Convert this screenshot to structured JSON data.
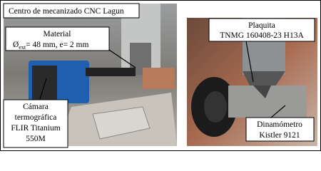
{
  "left_panel": {
    "title": "Centro de mecanizado CNC Lagun",
    "material": {
      "label": "Material",
      "symbol": "Ø",
      "subscript": "ext",
      "spec": "= 48 mm, e= 2 mm"
    },
    "camera": {
      "lines": [
        "Cámara",
        "termográfica",
        "FLIR Titanium",
        "550M"
      ]
    }
  },
  "right_panel": {
    "insert": {
      "lines": [
        "Plaquita",
        "TNMG 160408-23 H13A"
      ]
    },
    "dynamometer": {
      "lines": [
        "Dinamómetro",
        "Kistler 9121"
      ]
    }
  }
}
